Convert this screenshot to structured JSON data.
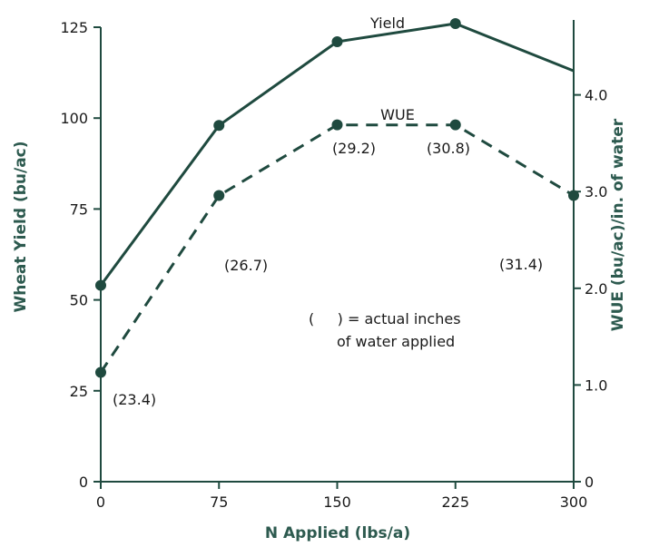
{
  "chart_data": {
    "type": "line",
    "x": [
      0,
      75,
      150,
      225,
      300
    ],
    "xlabel": "N Applied (lbs/a)",
    "xlim": [
      0,
      300
    ],
    "xticks": [
      "0",
      "75",
      "150",
      "225",
      "300"
    ],
    "y_left": {
      "label": "Wheat Yield (bu/ac)",
      "lim": [
        0,
        125
      ],
      "ticks": [
        "0",
        "25",
        "50",
        "75",
        "100",
        "125"
      ]
    },
    "y_right": {
      "label": "WUE (bu/ac)/in. of water",
      "lim": [
        0,
        4.7
      ],
      "ticks": [
        "0",
        "1.0",
        "2.0",
        "3.0",
        "4.0"
      ]
    },
    "series": [
      {
        "name": "Yield",
        "axis": "left",
        "style": "solid",
        "values": [
          54,
          98,
          121,
          126,
          113
        ],
        "marker_indices": [
          0,
          1,
          2,
          3
        ]
      },
      {
        "name": "WUE",
        "axis": "right",
        "style": "dashed",
        "values": [
          1.13,
          2.96,
          3.69,
          3.69,
          2.96
        ],
        "marker_indices": [
          0,
          1,
          2,
          3,
          4
        ]
      }
    ],
    "annotations": [
      "(23.4)",
      "(26.7)",
      "(29.2)",
      "(30.8)",
      "(31.4)"
    ],
    "legend_note": {
      "line1": "(     ) = actual inches",
      "line2": "of water applied"
    },
    "grid": false,
    "colors": {
      "line": "#1f4a3f",
      "axis_title": "#2d5a4f"
    }
  }
}
